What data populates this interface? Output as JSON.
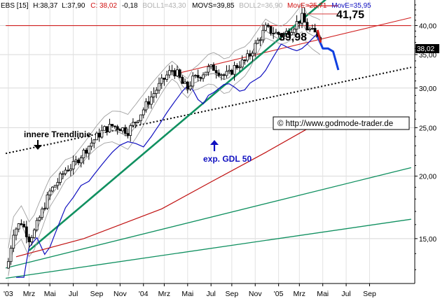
{
  "header": {
    "symbol": "EBS [15]",
    "high": "H:38,37",
    "low": "L:37,90",
    "close": "C: 38,02",
    "change": "-0,18",
    "boll1": "BOLL1=43,30",
    "movs": "MOVS=39,85",
    "boll2": "BOLL2=36,90",
    "move1": "MovE=25,71",
    "move2": "MovE=35,95"
  },
  "price_tag": "38,02",
  "annotations": {
    "peak_high": "41,75",
    "peak_mid": "39,98",
    "trendline_label": "innere Trendlinie",
    "ema_label": "exp. GDL 50",
    "source": "© http://www.godmode-trader.de"
  },
  "colors": {
    "candles": "#000000",
    "bollinger": "#a0a0a0",
    "ema50": "#1010c0",
    "ema200": "#c01010",
    "trend_green": "#109060",
    "forecast": "#1040e0",
    "resistance_red": "#d02020",
    "trendline_dotted": "#000000",
    "header_gray": "#b0b0b0",
    "header_red": "#d01010",
    "header_blue": "#1010c0"
  },
  "chart_data": {
    "type": "candlestick",
    "title": "",
    "y_scale": "log",
    "ylim": [
      12.2,
      45
    ],
    "y_ticks": [
      "40,00",
      "35,00",
      "30,00",
      "25,00",
      "20,00",
      "15,00"
    ],
    "y_tick_values": [
      40,
      35,
      30,
      25,
      20,
      15
    ],
    "x_ticks": [
      "'03",
      "Mrz",
      "Mai",
      "Jul",
      "Sep",
      "Nov",
      "'04",
      "Mrz",
      "Mai",
      "Jul",
      "Sep",
      "Nov",
      "'05",
      "Mrz",
      "Mai",
      "Jul",
      "Sep"
    ],
    "x_tick_weeks": [
      1,
      9,
      17,
      26,
      35,
      44,
      53,
      61,
      70,
      79,
      87,
      96,
      105,
      113,
      122,
      131,
      140
    ],
    "weekly_close_path": [
      [
        1,
        13.5
      ],
      [
        3,
        15.5
      ],
      [
        6,
        16.2
      ],
      [
        9,
        15.0
      ],
      [
        11,
        15.5
      ],
      [
        14,
        17.0
      ],
      [
        17,
        18.6
      ],
      [
        20,
        19.5
      ],
      [
        23,
        20.6
      ],
      [
        26,
        21.0
      ],
      [
        29,
        22.0
      ],
      [
        32,
        23.0
      ],
      [
        35,
        24.0
      ],
      [
        38,
        24.8
      ],
      [
        41,
        25.2
      ],
      [
        44,
        25.0
      ],
      [
        47,
        24.6
      ],
      [
        50,
        25.8
      ],
      [
        53,
        27.2
      ],
      [
        56,
        28.8
      ],
      [
        59,
        30.3
      ],
      [
        62,
        31.8
      ],
      [
        64,
        32.6
      ],
      [
        66,
        32.0
      ],
      [
        68,
        30.6
      ],
      [
        70,
        30.0
      ],
      [
        72,
        31.2
      ],
      [
        74,
        31.6
      ],
      [
        76,
        32.2
      ],
      [
        78,
        32.8
      ],
      [
        80,
        32.9
      ],
      [
        82,
        32.4
      ],
      [
        84,
        31.8
      ],
      [
        86,
        32.0
      ],
      [
        88,
        33.0
      ],
      [
        90,
        33.5
      ],
      [
        92,
        34.0
      ],
      [
        94,
        35.0
      ],
      [
        96,
        36.5
      ],
      [
        98,
        38.0
      ],
      [
        100,
        39.5
      ],
      [
        102,
        39.0
      ],
      [
        104,
        38.6
      ],
      [
        106,
        38.3
      ],
      [
        108,
        38.7
      ],
      [
        110,
        39.5
      ],
      [
        112,
        40.5
      ],
      [
        114,
        41.5
      ],
      [
        116,
        39.5
      ],
      [
        118,
        38.8
      ],
      [
        120,
        38.3
      ],
      [
        121,
        38.02
      ]
    ],
    "series": [
      {
        "name": "MovE",
        "type": "line",
        "points": [
          [
            64,
            27.6
          ],
          [
            80,
            30.0
          ],
          [
            96,
            32.2
          ],
          [
            112,
            34.6
          ],
          [
            121,
            35.95
          ]
        ]
      },
      {
        "name": "MovE",
        "type": "line",
        "points": [
          [
            4,
            13.8
          ],
          [
            30,
            15.0
          ],
          [
            60,
            17.2
          ],
          [
            80,
            19.6
          ],
          [
            100,
            22.3
          ],
          [
            121,
            25.71
          ]
        ]
      }
    ],
    "trendlines": [
      {
        "style": "green",
        "from": [
          9,
          14.2
        ],
        "to": [
          124,
          45.5
        ]
      },
      {
        "style": "green",
        "from": [
          0,
          13.1
        ],
        "to": [
          156,
          20.8
        ]
      },
      {
        "style": "green",
        "from": [
          0,
          12.5
        ],
        "to": [
          156,
          16.4
        ]
      },
      {
        "style": "red",
        "from": [
          65,
          32.0
        ],
        "to": [
          156,
          41.5
        ]
      },
      {
        "style": "red-horizontal",
        "from": [
          0,
          40.0
        ],
        "to": [
          156,
          40.0
        ]
      },
      {
        "style": "dotted",
        "from": [
          0,
          22.2
        ],
        "to": [
          156,
          33.0
        ]
      }
    ],
    "forecast_path": [
      [
        120,
        38.02
      ],
      [
        122,
        36.0
      ],
      [
        124,
        36.0
      ],
      [
        126,
        35.5
      ],
      [
        128,
        32.6
      ]
    ],
    "resistance_marks": [
      {
        "from": [
          116,
          43.8
        ],
        "to": [
          128,
          43.8
        ]
      }
    ],
    "peaks": [
      {
        "x": 114,
        "y": 41.75
      },
      {
        "x": 104,
        "y": 39.98
      }
    ],
    "grid": true,
    "legend": "none"
  }
}
